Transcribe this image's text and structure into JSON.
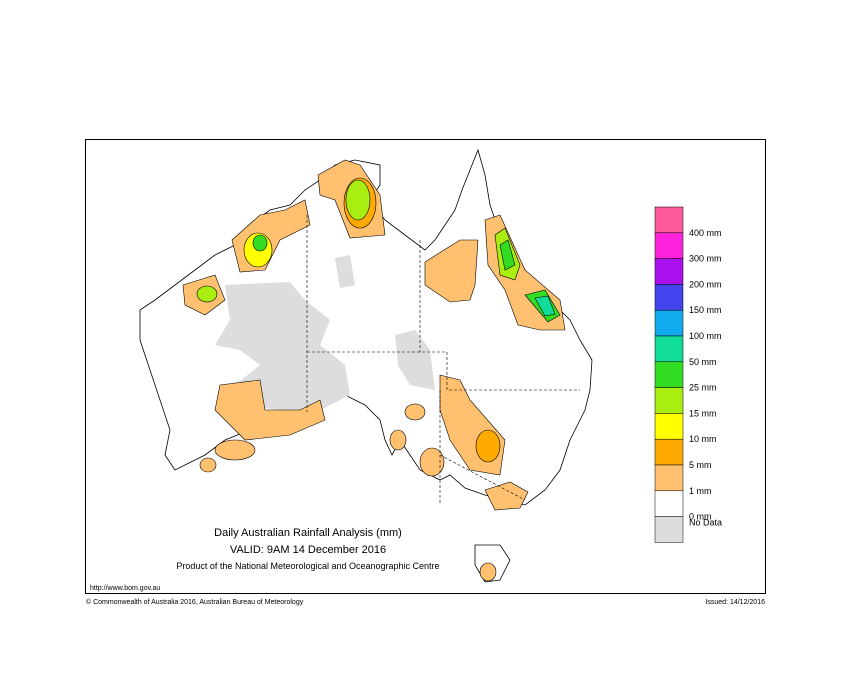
{
  "map": {
    "title": "Daily Australian Rainfall Analysis (mm)",
    "valid": "VALID: 9AM 14 December 2016",
    "producer": "Product of the National Meteorological and Oceanographic Centre",
    "url": "http://www.bom.gov.au",
    "copyright": "© Commonwealth of Australia 2016, Australian Bureau of Meteorology",
    "issued": "Issued: 14/12/2016",
    "legend": [
      {
        "color": "#ff5a9c",
        "label": "400 mm"
      },
      {
        "color": "#ff22dd",
        "label": "300 mm"
      },
      {
        "color": "#aa11ee",
        "label": "200 mm"
      },
      {
        "color": "#4444ee",
        "label": "150 mm"
      },
      {
        "color": "#11aaee",
        "label": "100 mm"
      },
      {
        "color": "#11dd99",
        "label": "50 mm"
      },
      {
        "color": "#33dd22",
        "label": "25 mm"
      },
      {
        "color": "#aaee11",
        "label": "15 mm"
      },
      {
        "color": "#ffff00",
        "label": "10 mm"
      },
      {
        "color": "#ffaa00",
        "label": "5 mm"
      },
      {
        "color": "#ffc070",
        "label": "1 mm"
      },
      {
        "color": "#ffffff",
        "label": "0 mm"
      },
      {
        "color": "#dddddd",
        "label": "No Data"
      }
    ]
  }
}
